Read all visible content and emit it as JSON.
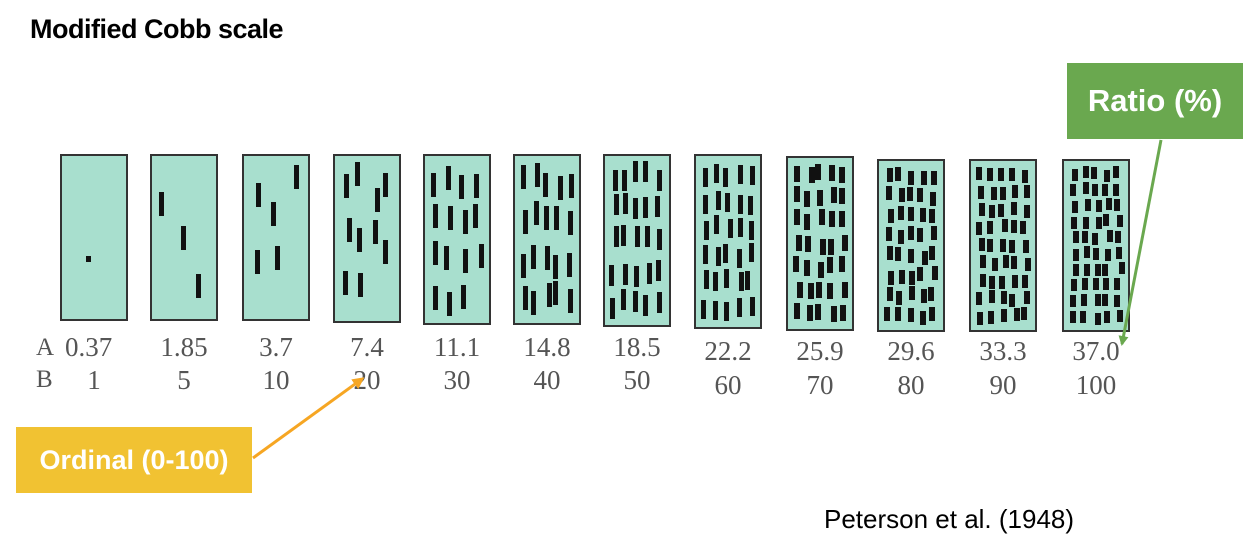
{
  "title": "Modified Cobb scale",
  "citation": "Peterson et al. (1948)",
  "row_labels": {
    "a": "A",
    "b": "B"
  },
  "callouts": {
    "ratio": {
      "label": "Ratio (%)",
      "color": "#6aa84f"
    },
    "ordinal": {
      "label": "Ordinal (0-100)",
      "color": "#f1c232"
    }
  },
  "scale": {
    "fill_color": "#a8dfce",
    "pustule_color": "#111111",
    "ratio_percent": [
      "0.37",
      "1.85",
      "3.7",
      "7.4",
      "11.1",
      "14.8",
      "18.5",
      "22.2",
      "25.9",
      "29.6",
      "33.3",
      "37.0"
    ],
    "ordinal": [
      "1",
      "5",
      "10",
      "20",
      "30",
      "40",
      "50",
      "60",
      "70",
      "80",
      "90",
      "100"
    ],
    "pustule_counts": [
      1,
      3,
      5,
      10,
      15,
      20,
      25,
      30,
      35,
      40,
      45,
      50
    ]
  }
}
